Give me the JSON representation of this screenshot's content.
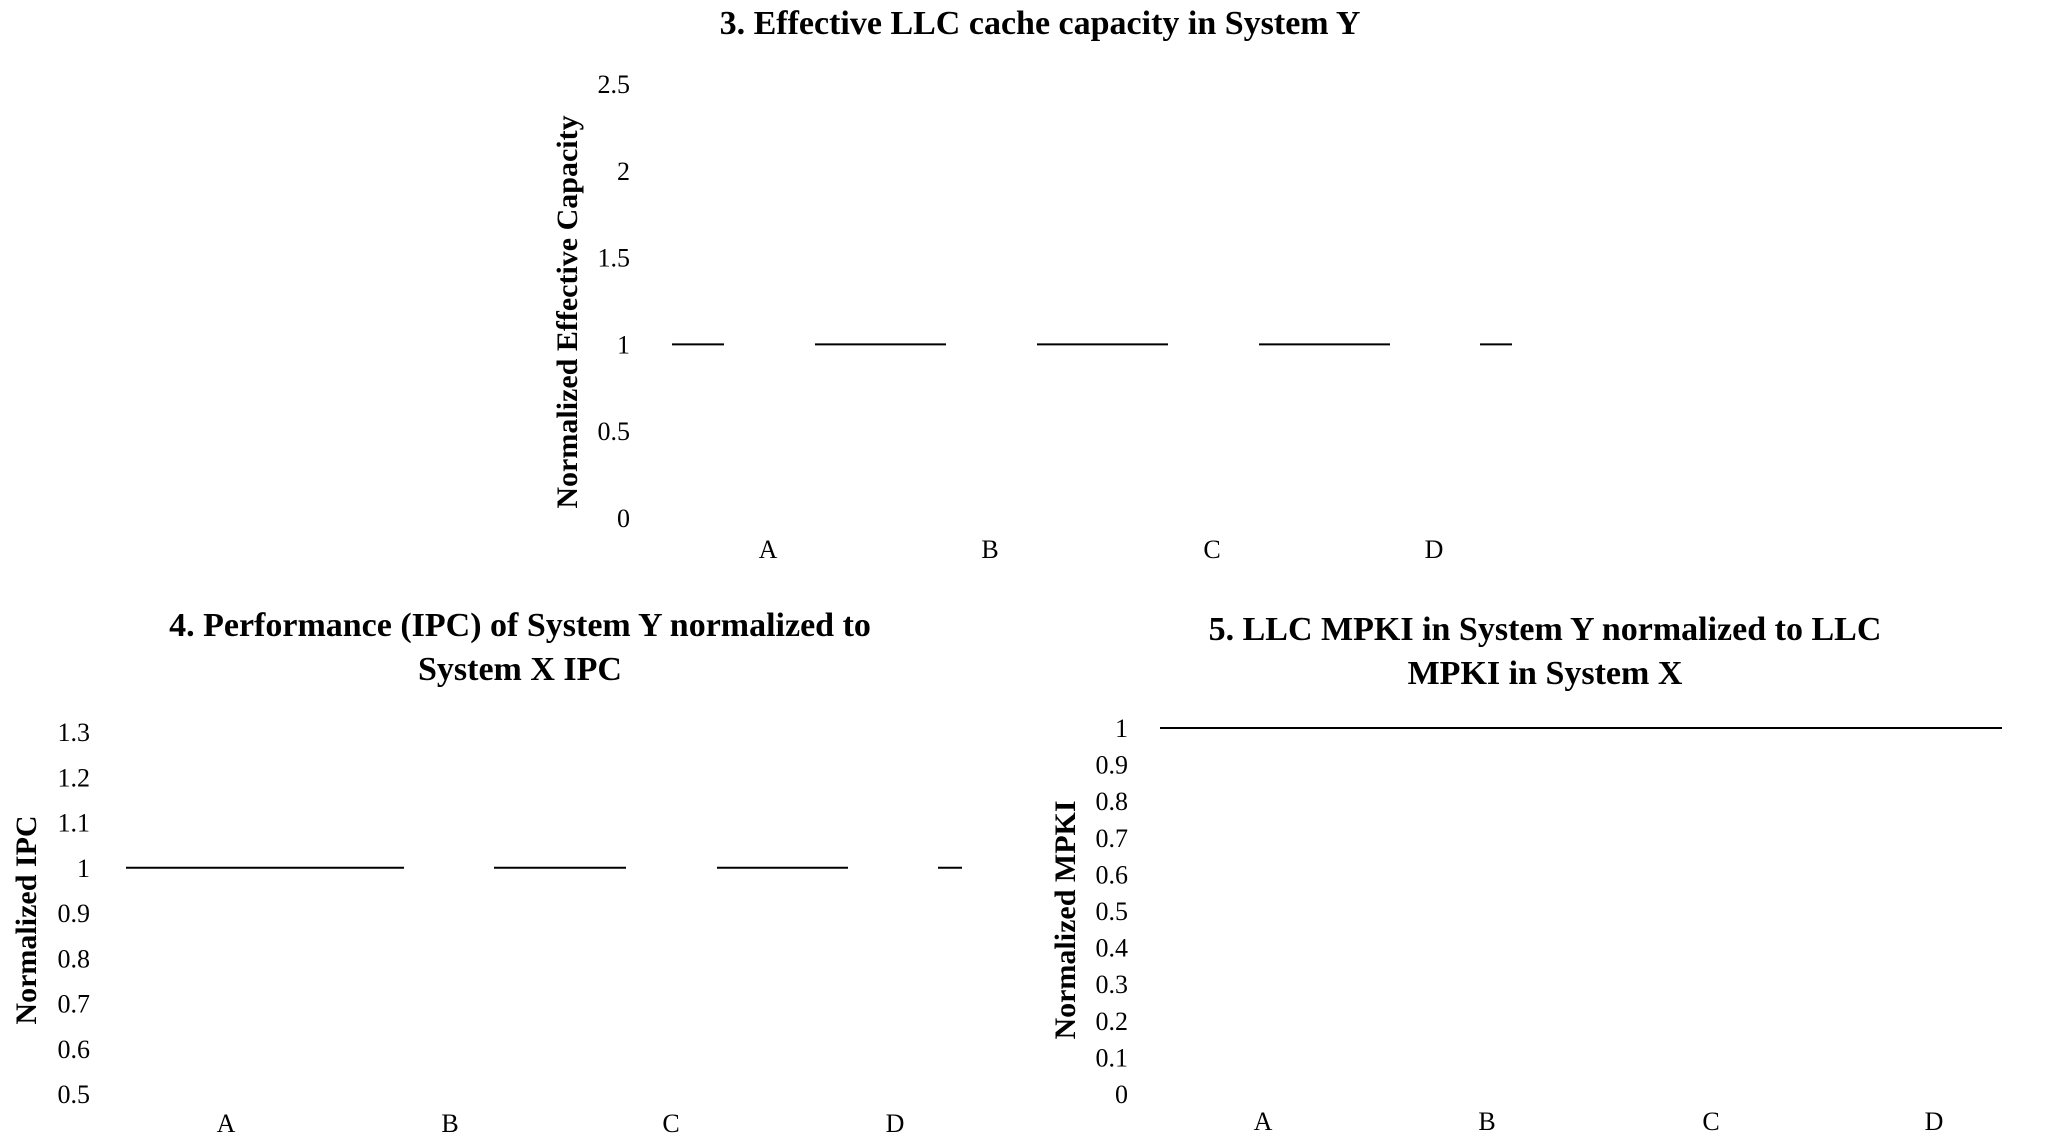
{
  "chart_data": [
    {
      "type": "line",
      "title": "3. Effective LLC cache capacity in System Y",
      "ylabel": "Normalized Effective Capacity",
      "xlabel": "",
      "categories": [
        "A",
        "B",
        "C",
        "D"
      ],
      "yticks": [
        "0",
        "0.5",
        "1",
        "1.5",
        "2",
        "2.5"
      ],
      "ylim": [
        0,
        2.5
      ],
      "reference_value": 1,
      "grid": false
    },
    {
      "type": "line",
      "title_lines": [
        "4. Performance (IPC) of System Y normalized to",
        "System X IPC"
      ],
      "ylabel": "Normalized IPC",
      "xlabel": "",
      "categories": [
        "A",
        "B",
        "C",
        "D"
      ],
      "yticks": [
        "0.5",
        "0.6",
        "0.7",
        "0.8",
        "0.9",
        "1",
        "1.1",
        "1.2",
        "1.3"
      ],
      "ylim": [
        0.5,
        1.3
      ],
      "reference_value": 1,
      "grid": false
    },
    {
      "type": "line",
      "title_lines": [
        "5. LLC MPKI in System Y normalized to LLC",
        "MPKI in System X"
      ],
      "ylabel": "Normalized MPKI",
      "xlabel": "",
      "categories": [
        "A",
        "B",
        "C",
        "D"
      ],
      "yticks": [
        "0",
        "0.1",
        "0.2",
        "0.3",
        "0.4",
        "0.5",
        "0.6",
        "0.7",
        "0.8",
        "0.9",
        "1"
      ],
      "ylim": [
        0,
        1
      ],
      "reference_value": 1,
      "grid": false
    }
  ]
}
